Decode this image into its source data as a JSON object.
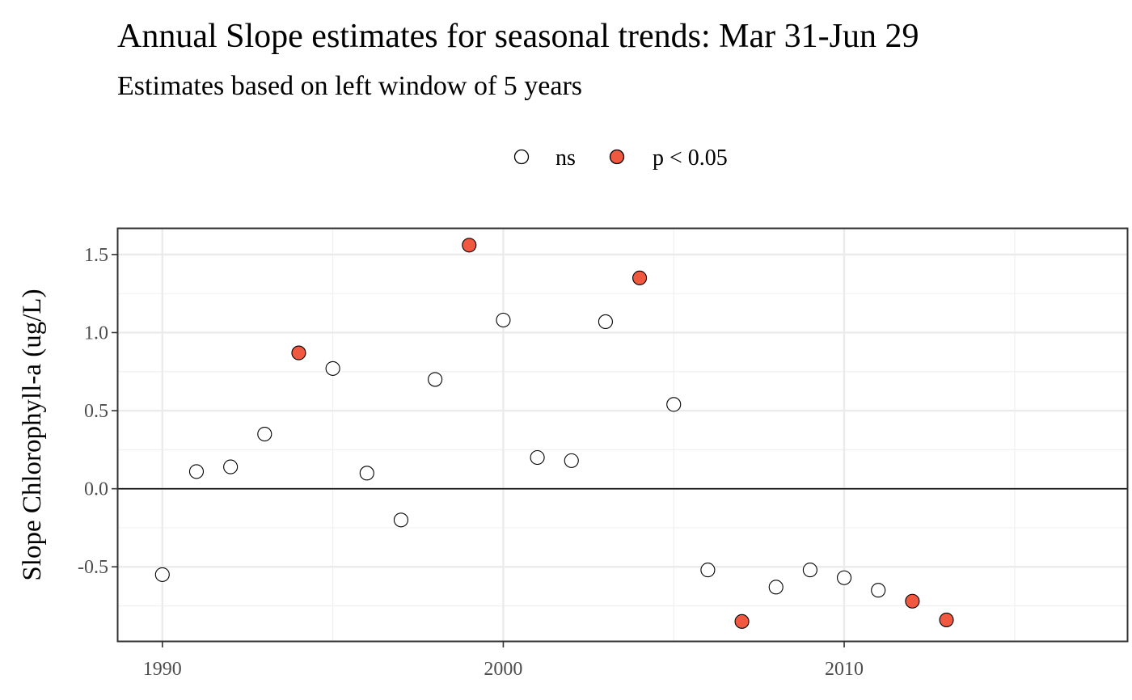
{
  "chart_data": {
    "type": "scatter",
    "title": "Annual Slope estimates for seasonal trends: Mar 31-Jun 29",
    "subtitle": "Estimates based on left window of 5 years",
    "xlabel": "",
    "ylabel": "Slope Chlorophyll-a (ug/L)",
    "xlim": [
      1988.7,
      2018.3
    ],
    "ylim": [
      -0.975,
      1.665
    ],
    "x_ticks": [
      1990,
      2000,
      2010
    ],
    "x_tick_labels": [
      "1990",
      "2000",
      "2010"
    ],
    "x_minor_ticks": [
      1995,
      2005,
      2015
    ],
    "y_ticks": [
      -0.5,
      0.0,
      0.5,
      1.0,
      1.5
    ],
    "y_tick_labels": [
      "-0.5",
      "0.0",
      "0.5",
      "1.0",
      "1.5"
    ],
    "y_minor_ticks": [
      -0.75,
      -0.25,
      0.25,
      0.75,
      1.25
    ],
    "reference_line_y": 0,
    "grid": true,
    "legend_position": "top",
    "series": [
      {
        "name": "ns",
        "color": "#ffffff",
        "stroke": "#000000",
        "points": [
          [
            1990,
            -0.55
          ],
          [
            1991,
            0.11
          ],
          [
            1992,
            0.14
          ],
          [
            1993,
            0.35
          ],
          [
            1995,
            0.77
          ],
          [
            1996,
            0.1
          ],
          [
            1997,
            -0.2
          ],
          [
            1998,
            0.7
          ],
          [
            2000,
            1.08
          ],
          [
            2001,
            0.2
          ],
          [
            2002,
            0.18
          ],
          [
            2003,
            1.07
          ],
          [
            2005,
            0.54
          ],
          [
            2006,
            -0.52
          ],
          [
            2008,
            -0.63
          ],
          [
            2009,
            -0.52
          ],
          [
            2010,
            -0.57
          ],
          [
            2011,
            -0.65
          ]
        ]
      },
      {
        "name": "p < 0.05",
        "color": "#f0583f",
        "stroke": "#000000",
        "points": [
          [
            1994,
            0.87
          ],
          [
            1999,
            1.56
          ],
          [
            2004,
            1.35
          ],
          [
            2007,
            -0.85
          ],
          [
            2012,
            -0.72
          ],
          [
            2013,
            -0.84
          ]
        ]
      }
    ]
  }
}
